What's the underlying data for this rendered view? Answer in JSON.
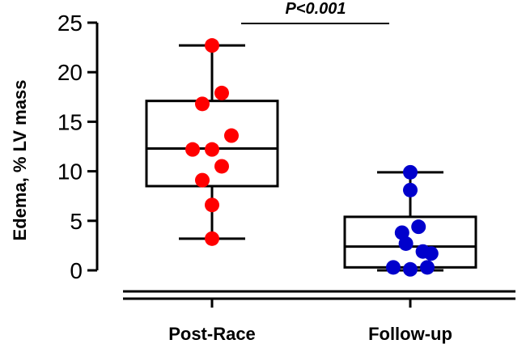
{
  "chart_data": {
    "type": "box",
    "ylabel": "Edema, % LV mass",
    "ylim": [
      0,
      25
    ],
    "yticks": [
      0,
      5,
      10,
      15,
      20,
      25
    ],
    "categories": [
      "Post-Race",
      "Follow-up"
    ],
    "series": [
      {
        "color": "#ff0000",
        "box": {
          "min": 3.2,
          "q1": 8.5,
          "median": 12.3,
          "q3": 17.1,
          "max": 22.7
        },
        "points": [
          {
            "dx": 0,
            "y": 22.7
          },
          {
            "dx": 0.2,
            "y": 17.9
          },
          {
            "dx": -0.2,
            "y": 16.8
          },
          {
            "dx": 0.4,
            "y": 13.6
          },
          {
            "dx": -0.4,
            "y": 12.2
          },
          {
            "dx": 0,
            "y": 12.2
          },
          {
            "dx": 0.2,
            "y": 10.5
          },
          {
            "dx": -0.2,
            "y": 9.1
          },
          {
            "dx": 0,
            "y": 6.6
          },
          {
            "dx": 0,
            "y": 3.2
          }
        ]
      },
      {
        "color": "#0000cc",
        "box": {
          "min": 0,
          "q1": 0.3,
          "median": 2.4,
          "q3": 5.4,
          "max": 9.9
        },
        "points": [
          {
            "dx": 0,
            "y": 9.9
          },
          {
            "dx": 0,
            "y": 8.1
          },
          {
            "dx": 0.17,
            "y": 4.4
          },
          {
            "dx": -0.17,
            "y": 3.8
          },
          {
            "dx": -0.09,
            "y": 2.7
          },
          {
            "dx": 0.26,
            "y": 1.9
          },
          {
            "dx": 0.43,
            "y": 1.7
          },
          {
            "dx": -0.35,
            "y": 0.3
          },
          {
            "dx": 0,
            "y": 0.1
          },
          {
            "dx": 0.35,
            "y": 0.3
          }
        ]
      }
    ],
    "annotation": {
      "text": "P<0.001"
    }
  }
}
